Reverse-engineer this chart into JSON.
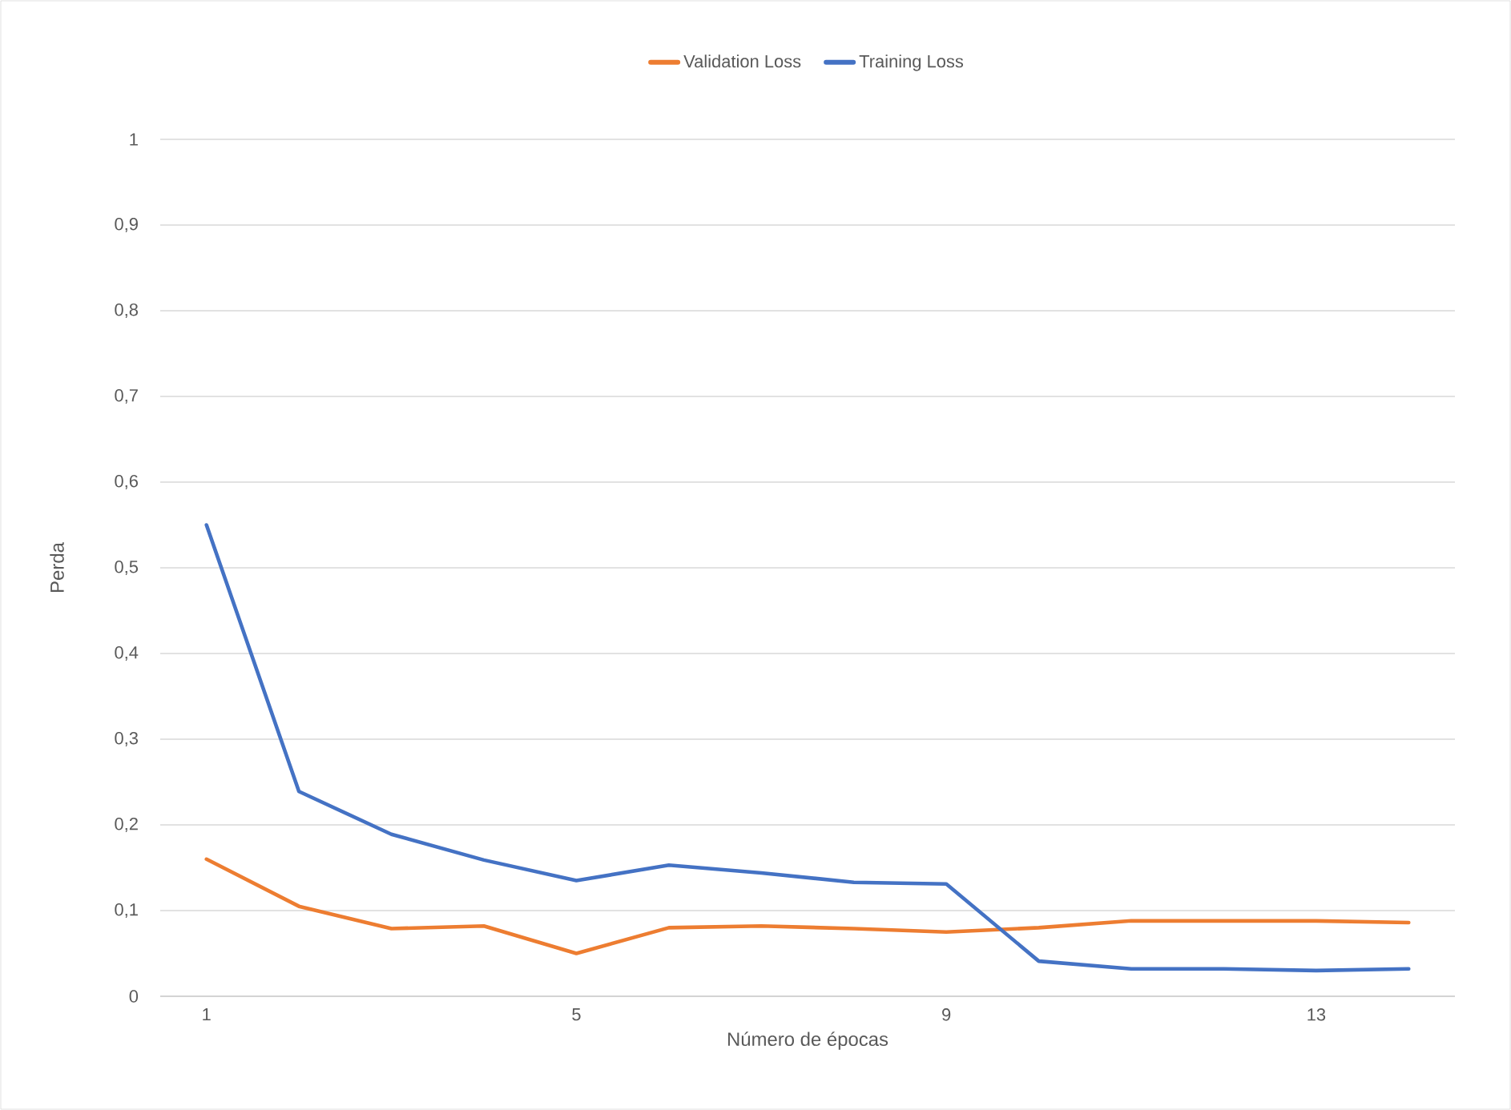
{
  "chart_data": {
    "type": "line",
    "xlabel": "Número de épocas",
    "ylabel": "Perda",
    "categories": [
      "1",
      null,
      null,
      null,
      "5",
      null,
      null,
      null,
      "9",
      null,
      null,
      null,
      "13",
      null
    ],
    "series": [
      {
        "name": "Validation Loss",
        "color": "#ed7d31",
        "values": [
          0.16,
          0.105,
          0.079,
          0.082,
          0.05,
          0.08,
          0.082,
          0.079,
          0.075,
          0.08,
          0.088,
          0.088,
          0.088,
          0.086
        ]
      },
      {
        "name": "Training Loss",
        "color": "#4472c4",
        "values": [
          0.55,
          0.239,
          0.189,
          0.159,
          0.135,
          0.153,
          0.144,
          0.133,
          0.131,
          0.041,
          0.032,
          0.032,
          0.03,
          0.032
        ]
      }
    ],
    "ylim": [
      0,
      1
    ],
    "yticks": [
      0,
      {
        "value": 0.1,
        "label": "0,1"
      },
      {
        "value": 0.2,
        "label": "0,2"
      },
      {
        "value": 0.3,
        "label": "0,3"
      },
      {
        "value": 0.4,
        "label": "0,4"
      },
      {
        "value": 0.5,
        "label": "0,5"
      },
      {
        "value": 0.6,
        "label": "0,6"
      },
      {
        "value": 0.7,
        "label": "0,7"
      },
      {
        "value": 0.8,
        "label": "0,8"
      },
      {
        "value": 0.9,
        "label": "0,9"
      },
      1
    ],
    "grid": "y",
    "legend": "top",
    "marker": "none",
    "line_style": "solid"
  }
}
